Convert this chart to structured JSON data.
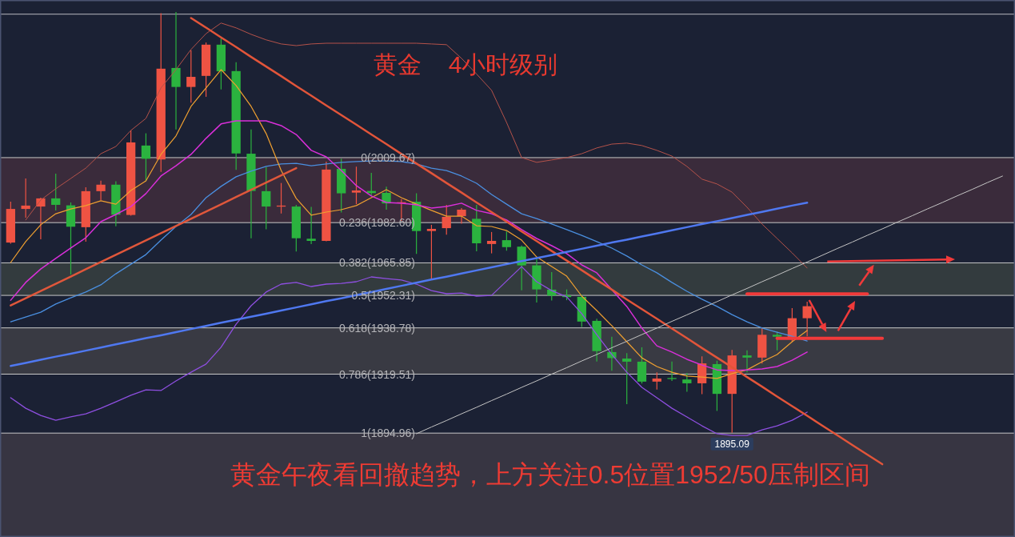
{
  "chart_data": {
    "type": "candlestick",
    "title": "黄金    4小时级别",
    "categories": [
      null,
      null,
      null,
      null,
      null,
      null,
      null,
      null,
      null,
      null,
      null,
      null,
      null,
      null,
      null,
      null,
      null,
      null,
      null,
      null,
      null,
      null,
      null,
      null,
      null,
      null,
      null,
      null,
      null,
      null,
      null,
      null,
      null,
      null,
      null,
      null,
      null,
      null,
      null,
      null,
      null,
      null,
      null,
      null,
      null,
      null,
      null,
      null,
      null,
      null,
      null,
      null,
      null,
      null,
      null,
      null,
      null,
      null,
      null,
      null,
      null,
      null,
      null,
      null,
      null,
      null,
      null
    ],
    "ylim": [
      1851.7,
      2075.3
    ],
    "ohlc": [
      [
        1974.3,
        1991.3,
        1973.8,
        1988.3
      ],
      [
        1988.3,
        2001.0,
        1984.7,
        1989.7
      ],
      [
        1989.3,
        1993.0,
        1975.7,
        1992.7
      ],
      [
        1992.7,
        2003.0,
        1987.7,
        1990.0
      ],
      [
        1989.8,
        1991.0,
        1961.0,
        1980.9
      ],
      [
        1980.7,
        1997.3,
        1974.7,
        1995.7
      ],
      [
        1995.7,
        2000.1,
        1992.0,
        1998.4
      ],
      [
        1998.4,
        1999.8,
        1981.1,
        1985.9
      ],
      [
        1985.8,
        2021.1,
        1985.5,
        2016.0
      ],
      [
        2014.7,
        2019.8,
        1999.8,
        2009.2
      ],
      [
        2008.9,
        2069.8,
        2003.7,
        2046.7
      ],
      [
        2047.0,
        2070.3,
        2021.4,
        2039.1
      ],
      [
        2039.1,
        2054.4,
        2032.6,
        2043.3
      ],
      [
        2043.7,
        2057.6,
        2035.0,
        2056.7
      ],
      [
        2056.7,
        2059.2,
        2038.1,
        2045.6
      ],
      [
        2045.7,
        2049.4,
        2004.6,
        2011.4
      ],
      [
        2011.3,
        2021.4,
        1976.1,
        1995.8
      ],
      [
        1995.7,
        2005.7,
        1979.8,
        1989.3
      ],
      [
        1989.4,
        1999.1,
        1986.4,
        1989.7
      ],
      [
        1989.3,
        1990.0,
        1970.6,
        1976.1
      ],
      [
        1975.9,
        1989.2,
        1973.7,
        1975.0
      ],
      [
        1975.0,
        2008.0,
        1974.8,
        2004.7
      ],
      [
        2005.0,
        2009.2,
        1986.8,
        1994.8
      ],
      [
        1995.1,
        2005.9,
        1990.3,
        1996.0
      ],
      [
        1995.8,
        2003.3,
        1994.0,
        1994.9
      ],
      [
        1995.0,
        1997.6,
        1988.0,
        1990.6
      ],
      [
        1990.9,
        1992.4,
        1983.3,
        1991.1
      ],
      [
        1991.3,
        1994.8,
        1969.6,
        1979.1
      ],
      [
        1979.1,
        1981.7,
        1958.7,
        1980.0
      ],
      [
        1980.3,
        1990.0,
        1977.6,
        1985.0
      ],
      [
        1985.3,
        1988.7,
        1982.2,
        1988.0
      ],
      [
        1984.2,
        1990.0,
        1970.7,
        1974.0
      ],
      [
        1973.7,
        1978.7,
        1969.8,
        1975.0
      ],
      [
        1975.3,
        1978.9,
        1970.9,
        1972.4
      ],
      [
        1972.6,
        1973.1,
        1954.4,
        1964.8
      ],
      [
        1964.8,
        1967.6,
        1949.3,
        1954.8
      ],
      [
        1954.7,
        1962.0,
        1950.2,
        1952.2
      ],
      [
        1952.3,
        1954.8,
        1950.3,
        1951.6
      ],
      [
        1951.7,
        1952.6,
        1939.2,
        1941.4
      ],
      [
        1941.7,
        1942.6,
        1924.8,
        1929.1
      ],
      [
        1928.7,
        1935.1,
        1920.9,
        1926.2
      ],
      [
        1926.0,
        1928.3,
        1907.0,
        1924.7
      ],
      [
        1924.7,
        1930.7,
        1915.6,
        1916.4
      ],
      [
        1916.4,
        1920.3,
        1913.1,
        1917.7
      ],
      [
        1917.9,
        1924.8,
        1916.7,
        1917.6
      ],
      [
        1917.3,
        1920.0,
        1912.2,
        1915.7
      ],
      [
        1915.7,
        1926.9,
        1911.2,
        1924.0
      ],
      [
        1923.7,
        1925.1,
        1904.2,
        1911.3
      ],
      [
        1911.3,
        1929.6,
        1895.09,
        1927.3
      ],
      [
        1927.3,
        1929.4,
        1920.3,
        1926.4
      ],
      [
        1926.4,
        1938.7,
        1923.9,
        1935.9
      ],
      [
        1935.9,
        1937.2,
        1929.4,
        1935.1
      ],
      [
        1934.4,
        1947.0,
        1932.9,
        1942.8
      ],
      [
        1942.8,
        1949.7,
        1935.3,
        1947.8
      ],
      null,
      null,
      null,
      null,
      null,
      null,
      null,
      null,
      null,
      null,
      null,
      null,
      null
    ],
    "colors": [
      "#ef5343",
      "#ef5343",
      "#ef5343",
      "#2bb33f",
      "#2bb33f",
      "#ef5343",
      "#ef5343",
      "#2bb33f",
      "#ef5343",
      "#2bb33f",
      "#ef5343",
      "#2bb33f",
      "#ef5343",
      "#ef5343",
      "#2bb33f",
      "#2bb33f",
      "#2bb33f",
      "#2bb33f",
      "#ef5343",
      "#2bb33f",
      "#2bb33f",
      "#ef5343",
      "#2bb33f",
      "#ef5343",
      "#2bb33f",
      "#2bb33f",
      "#ef5343",
      "#2bb33f",
      "#ef5343",
      "#ef5343",
      "#ef5343",
      "#2bb33f",
      "#ef5343",
      "#2bb33f",
      "#2bb33f",
      "#2bb33f",
      "#2bb33f",
      "#2bb33f",
      "#2bb33f",
      "#2bb33f",
      "#2bb33f",
      "#2bb33f",
      "#2bb33f",
      "#ef5343",
      "#2bb33f",
      "#2bb33f",
      "#ef5343",
      "#2bb33f",
      "#ef5343",
      "#2bb33f",
      "#ef5343",
      "#2bb33f",
      "#ef5343",
      "#ef5343",
      null,
      null,
      null,
      null,
      null,
      null,
      null,
      null,
      null,
      null,
      null,
      null,
      null
    ],
    "series": [
      {
        "type": "line",
        "color": "#b4524a",
        "values": [
          null,
          1983.7,
          1992.0,
          1996.7,
          2001.0,
          2005.3,
          2011.3,
          2014.3,
          2021.0,
          2026.0,
          2038.7,
          2046.3,
          2054.7,
          2061.3,
          2065.7,
          2063.7,
          2061.0,
          2058.7,
          2057.0,
          2056.3,
          2057.0,
          2057.3,
          2057.3,
          2057.3,
          2057.3,
          2057.3,
          2057.3,
          2057.3,
          2057.0,
          2056.7,
          2051.0,
          2044.5,
          2037.7,
          2024.3,
          2009.7,
          2007.7,
          2008.7,
          2009.7,
          2011.3,
          2013.7,
          2015.3,
          2015.7,
          2014.7,
          2012.7,
          2010.3,
          2006.0,
          2000.7,
          1998.7,
          1995.3,
          1989.0,
          1982.0,
          1976.0,
          1970.0,
          1963.7,
          null,
          null,
          null,
          null,
          null,
          null,
          null,
          null,
          null,
          null,
          null,
          null,
          null
        ]
      },
      {
        "type": "line",
        "color": "#4a8fe0",
        "values": [
          1941.3,
          1943.3,
          1945.3,
          1948.7,
          1951.3,
          1953.7,
          1956.7,
          1961.3,
          1965.3,
          1969.3,
          1975.3,
          1981.0,
          1986.0,
          1993.0,
          1997.7,
          2001.7,
          2004.0,
          2006.0,
          2007.0,
          2007.3,
          2006.3,
          2007.0,
          2007.7,
          2008.0,
          2008.3,
          2008.3,
          2008.0,
          2007.0,
          2005.3,
          2004.3,
          2002.0,
          1999.0,
          1994.3,
          1990.3,
          1986.3,
          1984.3,
          1982.0,
          1979.7,
          1977.3,
          1974.7,
          1972.0,
          1968.7,
          1965.0,
          1961.7,
          1957.7,
          1954.0,
          1950.7,
          1947.7,
          1944.3,
          1941.3,
          1938.7,
          1937.0,
          1935.3,
          1933.3,
          null,
          null,
          null,
          null,
          null,
          null,
          null,
          null,
          null,
          null,
          null,
          null,
          null
        ]
      },
      {
        "type": "line",
        "color": "#8e4fe0",
        "values": [
          1909.7,
          1905.3,
          1902.3,
          1900.3,
          1901.7,
          1903.0,
          1905.3,
          1908.0,
          1910.7,
          1913.0,
          1912.7,
          1916.7,
          1920.3,
          1923.7,
          1930.7,
          1940.3,
          1948.0,
          1953.7,
          1957.0,
          1957.7,
          1956.0,
          1957.0,
          1957.3,
          1958.0,
          1960.0,
          1959.3,
          1958.7,
          1957.0,
          1954.3,
          1953.0,
          1953.3,
          1952.0,
          1952.3,
          1958.3,
          1964.3,
          1958.0,
          1954.3,
          1951.7,
          1944.7,
          1936.0,
          1927.7,
          1920.3,
          1914.0,
          1909.7,
          1905.3,
          1901.7,
          1898.0,
          1894.7,
          1894.0,
          1894.0,
          1896.3,
          1898.0,
          1900.3,
          1903.7,
          null,
          null,
          null,
          null,
          null,
          null,
          null,
          null,
          null,
          null,
          null,
          null,
          null
        ]
      },
      {
        "type": "line",
        "color": "#f0a030",
        "values": [
          1966.0,
          1974.7,
          1981.7,
          1986.3,
          1988.3,
          1989.7,
          1991.7,
          1990.3,
          1996.0,
          2000.0,
          2011.0,
          2018.7,
          2031.0,
          2038.7,
          2046.3,
          2039.7,
          2031.0,
          2019.7,
          2004.3,
          1992.7,
          1985.7,
          1987.0,
          1988.0,
          1989.7,
          1993.0,
          1996.3,
          1993.0,
          1990.3,
          1987.7,
          1985.3,
          1985.3,
          1981.3,
          1981.0,
          1979.3,
          1975.3,
          1968.3,
          1964.3,
          1960.3,
          1952.0,
          1946.0,
          1939.7,
          1933.0,
          1926.3,
          1922.7,
          1920.3,
          1918.7,
          1918.3,
          1917.7,
          1919.7,
          1921.3,
          1924.7,
          1927.7,
          1933.0,
          1937.7,
          null,
          null,
          null,
          null,
          null,
          null,
          null,
          null,
          null,
          null,
          null,
          null,
          null
        ]
      },
      {
        "type": "line",
        "color": "#d92fd9",
        "values": [
          1950.3,
          1957.7,
          1963.3,
          1967.7,
          1972.0,
          1976.3,
          1983.0,
          1986.0,
          1989.3,
          1994.7,
          2002.0,
          2006.3,
          2011.0,
          2017.7,
          2023.7,
          2025.0,
          2025.0,
          2025.0,
          2023.0,
          2019.3,
          2012.7,
          2010.0,
          2004.3,
          1998.0,
          1993.7,
          1991.0,
          1990.7,
          1990.0,
          1988.7,
          1989.3,
          1990.7,
          1987.7,
          1986.3,
          1983.7,
          1979.7,
          1976.0,
          1973.0,
          1969.7,
          1965.0,
          1961.7,
          1954.7,
          1947.7,
          1938.7,
          1931.3,
          1928.7,
          1925.7,
          1923.3,
          1921.3,
          1921.0,
          1921.3,
          1921.7,
          1922.7,
          1925.3,
          1928.7,
          null,
          null,
          null,
          null,
          null,
          null,
          null,
          null,
          null,
          null,
          null,
          null,
          null
        ]
      },
      {
        "type": "line",
        "color": "#e2553a",
        "values": [
          null,
          null,
          null,
          null,
          null,
          null,
          null,
          null,
          null,
          null,
          null,
          null,
          2067.8,
          2063.8,
          2059.7,
          2055.7,
          2051.6,
          2047.6,
          2043.6,
          2039.5,
          2035.5,
          2031.4,
          2027.4,
          2023.4,
          2019.3,
          2015.3,
          2011.2,
          2007.2,
          2003.2,
          1999.1,
          1995.1,
          1991.0,
          1987.0,
          1983.0,
          1978.9,
          1974.9,
          1970.8,
          1966.8,
          1962.8,
          1958.7,
          1954.7,
          1950.6,
          1946.6,
          1942.6,
          1938.5,
          1934.5,
          1930.4,
          1926.4,
          1922.4,
          1918.3,
          1914.3,
          1910.2,
          1906.2,
          1902.2,
          1898.1,
          1894.1,
          1890.0,
          1886.0,
          1882.0,
          null,
          null,
          null,
          null,
          null,
          null,
          null,
          null
        ]
      },
      {
        "type": "line",
        "color": "#e0573b",
        "values": [
          1948.1,
          1951.1,
          1954.1,
          1957.1,
          1960.1,
          1963.2,
          1966.2,
          1969.2,
          1972.2,
          1975.2,
          1978.2,
          1981.2,
          1984.2,
          1987.2,
          1990.2,
          1993.3,
          1996.3,
          1999.3,
          2002.3,
          2005.3,
          null,
          null,
          null,
          null,
          null,
          null,
          null,
          null,
          null,
          null,
          null,
          null,
          null,
          null,
          null,
          null,
          null,
          null,
          null,
          null,
          null,
          null,
          null,
          null,
          null,
          null,
          null,
          null,
          null,
          null,
          null,
          null,
          null,
          null,
          null,
          null,
          null,
          null,
          null,
          null,
          null,
          null,
          null,
          null,
          null,
          null,
          null
        ]
      },
      {
        "type": "line",
        "color": "#4f78f0",
        "values": [
          1922.9,
          1924.2,
          1925.5,
          1926.8,
          1928.0,
          1929.3,
          1930.6,
          1931.9,
          1933.2,
          1934.5,
          1935.7,
          1937.0,
          1938.3,
          1939.6,
          1940.9,
          1942.2,
          1943.4,
          1944.7,
          1946.0,
          1947.3,
          1948.6,
          1949.9,
          1951.1,
          1952.4,
          1953.7,
          1955.0,
          1956.3,
          1957.6,
          1958.9,
          1960.1,
          1961.4,
          1962.7,
          1964.0,
          1965.3,
          1966.6,
          1967.8,
          1969.1,
          1970.4,
          1971.7,
          1973.0,
          1974.3,
          1975.5,
          1976.8,
          1978.1,
          1979.4,
          1980.7,
          1982.0,
          1983.2,
          1984.5,
          1985.8,
          1987.1,
          1988.4,
          1989.7,
          1990.9,
          null,
          null,
          null,
          null,
          null,
          null,
          null,
          null,
          null,
          null,
          null,
          null,
          null
        ]
      },
      {
        "type": "line",
        "color": "#c4c4c4",
        "values": [
          null,
          null,
          null,
          null,
          null,
          null,
          null,
          null,
          null,
          null,
          null,
          null,
          null,
          null,
          null,
          null,
          null,
          null,
          null,
          null,
          null,
          null,
          null,
          null,
          null,
          null,
          null,
          1894.7,
          1897.5,
          1900.2,
          1903.0,
          1905.7,
          1908.5,
          1911.2,
          1914.0,
          1916.7,
          1919.5,
          1922.2,
          1925.0,
          1927.7,
          1930.5,
          1933.2,
          1936.0,
          1938.7,
          1941.5,
          1944.2,
          1947.0,
          1949.7,
          1952.5,
          1955.2,
          1958.0,
          1960.7,
          1963.5,
          1966.2,
          1969.0,
          1971.8,
          1974.5,
          1977.3,
          1980.0,
          1982.8,
          1985.5,
          1988.3,
          1991.0,
          1993.8,
          1996.5,
          1999.3,
          2002.0
        ]
      },
      {
        "type": "line",
        "color": "#f23a3a",
        "values": [
          null,
          null,
          null,
          null,
          null,
          null,
          null,
          null,
          null,
          null,
          null,
          null,
          null,
          null,
          null,
          null,
          null,
          null,
          null,
          null,
          null,
          null,
          null,
          null,
          null,
          null,
          null,
          null,
          null,
          null,
          null,
          null,
          null,
          null,
          null,
          null,
          null,
          null,
          null,
          null,
          null,
          null,
          null,
          null,
          null,
          null,
          null,
          null,
          null,
          1952.9,
          1952.9,
          1952.9,
          1952.9,
          1952.9,
          1952.9,
          1952.9,
          1952.9,
          1952.9,
          null,
          null,
          null,
          null,
          null,
          null,
          null,
          null,
          null
        ]
      },
      {
        "type": "line",
        "color": "#f23a3a",
        "values": [
          null,
          null,
          null,
          null,
          null,
          null,
          null,
          null,
          null,
          null,
          null,
          null,
          null,
          null,
          null,
          null,
          null,
          null,
          null,
          null,
          null,
          null,
          null,
          null,
          null,
          null,
          null,
          null,
          null,
          null,
          null,
          null,
          null,
          null,
          null,
          null,
          null,
          null,
          null,
          null,
          null,
          null,
          null,
          null,
          null,
          null,
          null,
          null,
          null,
          null,
          null,
          1934.4,
          1934.4,
          1934.4,
          1934.4,
          1934.4,
          1934.4,
          1934.4,
          1934.4,
          null,
          null,
          null,
          null,
          null,
          null,
          null,
          null
        ]
      }
    ],
    "ref_lines": [
      {
        "axis": "y",
        "value": 2069.4,
        "color": "#b9b9c0"
      },
      {
        "axis": "y",
        "value": 2009.67,
        "label": "0(2009.67)",
        "color": "#c8c8c8"
      },
      {
        "axis": "y",
        "value": 1982.6,
        "label": "0.236(1982.60)",
        "color": "#c8c8c8"
      },
      {
        "axis": "y",
        "value": 1965.85,
        "label": "0.382(1965.85)",
        "color": "#c8c8c8"
      },
      {
        "axis": "y",
        "value": 1952.31,
        "label": "0.5(1952.31)",
        "color": "#c8c8c8"
      },
      {
        "axis": "y",
        "value": 1938.78,
        "label": "0.618(1938.78)",
        "color": "#c8c8c8"
      },
      {
        "axis": "y",
        "value": 1919.51,
        "label": "0.786(1919.51)",
        "color": "#c8c8c8"
      },
      {
        "axis": "y",
        "value": 1894.96,
        "label": "1(1894.96)",
        "color": "#c8c8c8"
      }
    ],
    "bands": [
      {
        "axis": "y",
        "from": 1982.6,
        "to": 2009.67,
        "color": "#3a2b3b"
      },
      {
        "axis": "y",
        "from": 1952.31,
        "to": 1965.85,
        "color": "#333b3e"
      },
      {
        "axis": "y",
        "from": 1919.51,
        "to": 1938.78,
        "color": "#393a43"
      },
      {
        "axis": "y",
        "from": 1851.7,
        "to": 1894.96,
        "color": "#373542"
      }
    ],
    "annotations": [
      "黄金午夜看回撤趋势，上方关注0.5位置1952/50压制区间",
      {
        "text": "1895.09",
        "y": 1895.09
      }
    ]
  }
}
